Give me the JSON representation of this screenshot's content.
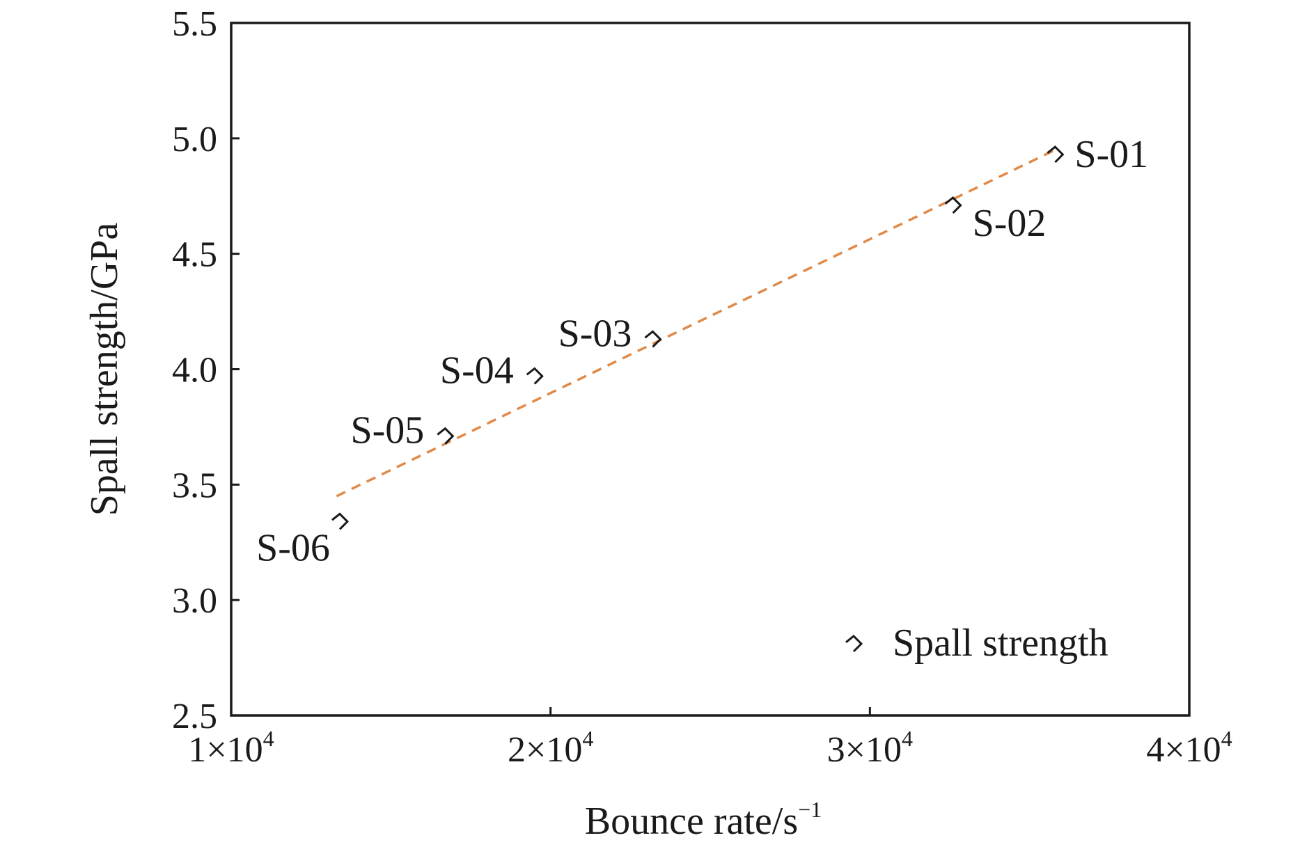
{
  "chart_data": {
    "type": "scatter",
    "title": "",
    "xlabel": "Bounce rate/s",
    "xlabel_sup": "−1",
    "ylabel": "Spall strength/GPa",
    "xlim": [
      10000,
      40000
    ],
    "ylim": [
      2.5,
      5.5
    ],
    "x_ticks": [
      {
        "value": 10000,
        "base": "1×10",
        "exp": "4"
      },
      {
        "value": 20000,
        "base": "2×10",
        "exp": "4"
      },
      {
        "value": 30000,
        "base": "3×10",
        "exp": "4"
      },
      {
        "value": 40000,
        "base": "4×10",
        "exp": "4"
      }
    ],
    "y_ticks": [
      {
        "value": 2.5,
        "label": "2.5"
      },
      {
        "value": 3.0,
        "label": "3.0"
      },
      {
        "value": 3.5,
        "label": "3.5"
      },
      {
        "value": 4.0,
        "label": "4.0"
      },
      {
        "value": 4.5,
        "label": "4.5"
      },
      {
        "value": 5.0,
        "label": "5.0"
      },
      {
        "value": 5.5,
        "label": "5.5"
      }
    ],
    "grid": false,
    "legend_position": "bottom-right",
    "series": [
      {
        "name": "Spall strength",
        "marker": "diamond-open",
        "color": "#1a1a1a",
        "points": [
          {
            "label": "S-01",
            "x": 35800,
            "y": 4.93,
            "label_pos": "right"
          },
          {
            "label": "S-02",
            "x": 32600,
            "y": 4.71,
            "label_pos": "below-right"
          },
          {
            "label": "S-03",
            "x": 23200,
            "y": 4.13,
            "label_pos": "left"
          },
          {
            "label": "S-04",
            "x": 19500,
            "y": 3.97,
            "label_pos": "left"
          },
          {
            "label": "S-05",
            "x": 16700,
            "y": 3.71,
            "label_pos": "left"
          },
          {
            "label": "S-06",
            "x": 13400,
            "y": 3.34,
            "label_pos": "below-left"
          }
        ]
      }
    ],
    "fit_line": {
      "style": "dashed",
      "color": "#e08a4a",
      "x": [
        13300,
        35800
      ],
      "y": [
        3.45,
        4.95
      ]
    }
  }
}
